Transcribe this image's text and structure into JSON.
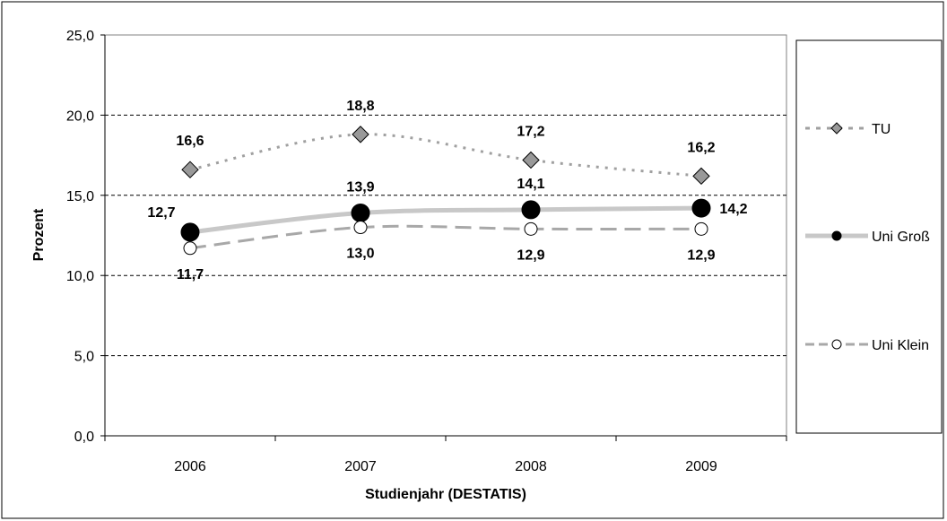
{
  "chart_data": {
    "type": "line",
    "title": "",
    "xlabel": "Studienjahr (DESTATIS)",
    "ylabel": "Prozent",
    "categories": [
      "2006",
      "2007",
      "2008",
      "2009"
    ],
    "ylim": [
      0,
      25
    ],
    "yticks": [
      "0,0",
      "5,0",
      "10,0",
      "15,0",
      "20,0",
      "25,0"
    ],
    "grid": "horizontal dashed",
    "legend_position": "right",
    "series": [
      {
        "name": "TU",
        "values": [
          16.6,
          18.8,
          17.2,
          16.2
        ],
        "labels": [
          "16,6",
          "18,8",
          "17,2",
          "16,2"
        ],
        "color": "#a0a0a0",
        "line_style": "dotted",
        "marker": "diamond",
        "marker_color": "#999999"
      },
      {
        "name": "Uni Groß",
        "values": [
          12.7,
          13.9,
          14.1,
          14.2
        ],
        "labels": [
          "12,7",
          "13,9",
          "14,1",
          "14,2"
        ],
        "color": "#c8c8c8",
        "line_style": "solid",
        "marker": "circle",
        "marker_color": "#000000"
      },
      {
        "name": "Uni Klein",
        "values": [
          11.7,
          13.0,
          12.9,
          12.9
        ],
        "labels": [
          "11,7",
          "13,0",
          "12,9",
          "12,9"
        ],
        "color": "#a8a8a8",
        "line_style": "dashed",
        "marker": "circle",
        "marker_color": "#ffffff"
      }
    ]
  }
}
